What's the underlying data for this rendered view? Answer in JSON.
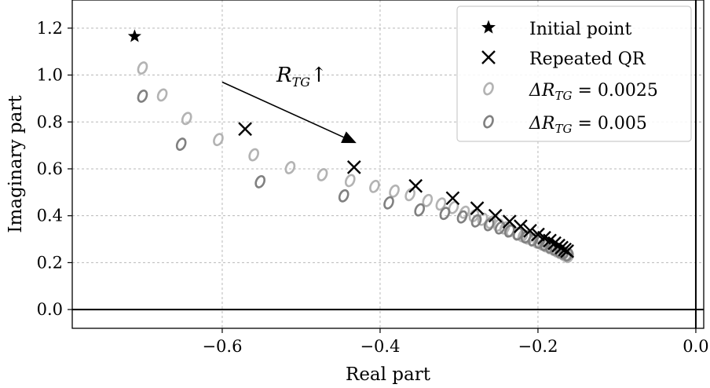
{
  "chart_data": {
    "type": "scatter",
    "title": "",
    "xlabel": "Real part",
    "ylabel": "Imaginary part",
    "xlim": [
      -0.79,
      0.01
    ],
    "ylim": [
      -0.08,
      1.32
    ],
    "xticks": [
      -0.6,
      -0.4,
      -0.2,
      0.0
    ],
    "xtick_labels": [
      "−0.6",
      "−0.4",
      "−0.2",
      "0.0"
    ],
    "yticks": [
      0.0,
      0.2,
      0.4,
      0.6,
      0.8,
      1.0,
      1.2
    ],
    "ytick_labels": [
      "0.0",
      "0.2",
      "0.4",
      "0.6",
      "0.8",
      "1.0",
      "1.2"
    ],
    "grid": true,
    "grid_style": "dashed",
    "reference_lines": {
      "horizontal_at_y": 0.0,
      "vertical_at_x": 0.0
    },
    "legend_position": "top-right",
    "annotation": {
      "text": "R",
      "subscript": "TG",
      "suffix": "↑",
      "arrow_from": [
        -0.6,
        0.97
      ],
      "arrow_to": [
        -0.43,
        0.71
      ]
    },
    "series": [
      {
        "name": "Initial point",
        "marker": "star",
        "color": "#000000",
        "points": [
          [
            -0.711,
            1.165
          ]
        ]
      },
      {
        "name": "Repeated QR",
        "marker": "x",
        "color": "#000000",
        "points": [
          [
            -0.571,
            0.77
          ],
          [
            -0.433,
            0.607
          ],
          [
            -0.355,
            0.527
          ],
          [
            -0.308,
            0.475
          ],
          [
            -0.277,
            0.432
          ],
          [
            -0.254,
            0.4
          ],
          [
            -0.236,
            0.375
          ],
          [
            -0.222,
            0.355
          ],
          [
            -0.21,
            0.336
          ],
          [
            -0.2,
            0.32
          ],
          [
            -0.192,
            0.306
          ],
          [
            -0.185,
            0.294
          ],
          [
            -0.179,
            0.283
          ],
          [
            -0.174,
            0.273
          ],
          [
            -0.17,
            0.264
          ],
          [
            -0.166,
            0.256
          ],
          [
            -0.163,
            0.249
          ]
        ]
      },
      {
        "name": "ΔR_TG = 0.0025",
        "marker": "o-italic",
        "color": "#b3b3b3",
        "points": [
          [
            -0.701,
            1.03
          ],
          [
            -0.676,
            0.915
          ],
          [
            -0.645,
            0.815
          ],
          [
            -0.605,
            0.725
          ],
          [
            -0.56,
            0.66
          ],
          [
            -0.514,
            0.605
          ],
          [
            -0.473,
            0.575
          ],
          [
            -0.438,
            0.55
          ],
          [
            -0.407,
            0.525
          ],
          [
            -0.382,
            0.505
          ],
          [
            -0.362,
            0.49
          ],
          [
            -0.34,
            0.465
          ],
          [
            -0.323,
            0.45
          ],
          [
            -0.307,
            0.435
          ],
          [
            -0.293,
            0.415
          ],
          [
            -0.281,
            0.4
          ],
          [
            -0.27,
            0.385
          ],
          [
            -0.26,
            0.372
          ],
          [
            -0.25,
            0.36
          ],
          [
            -0.242,
            0.348
          ],
          [
            -0.234,
            0.336
          ],
          [
            -0.226,
            0.325
          ],
          [
            -0.219,
            0.315
          ],
          [
            -0.212,
            0.305
          ],
          [
            -0.206,
            0.296
          ],
          [
            -0.2,
            0.288
          ],
          [
            -0.194,
            0.28
          ],
          [
            -0.189,
            0.272
          ],
          [
            -0.184,
            0.264
          ],
          [
            -0.179,
            0.257
          ],
          [
            -0.175,
            0.25
          ],
          [
            -0.171,
            0.243
          ],
          [
            -0.167,
            0.237
          ],
          [
            -0.164,
            0.231
          ],
          [
            -0.161,
            0.226
          ]
        ]
      },
      {
        "name": "ΔR_TG = 0.005",
        "marker": "o-italic",
        "color": "#808080",
        "points": [
          [
            -0.701,
            0.91
          ],
          [
            -0.652,
            0.705
          ],
          [
            -0.552,
            0.545
          ],
          [
            -0.446,
            0.485
          ],
          [
            -0.389,
            0.455
          ],
          [
            -0.35,
            0.425
          ],
          [
            -0.318,
            0.41
          ],
          [
            -0.296,
            0.395
          ],
          [
            -0.278,
            0.378
          ],
          [
            -0.262,
            0.362
          ],
          [
            -0.248,
            0.348
          ],
          [
            -0.236,
            0.335
          ],
          [
            -0.225,
            0.322
          ],
          [
            -0.215,
            0.31
          ],
          [
            -0.206,
            0.298
          ],
          [
            -0.198,
            0.287
          ],
          [
            -0.191,
            0.277
          ],
          [
            -0.184,
            0.267
          ],
          [
            -0.178,
            0.258
          ],
          [
            -0.172,
            0.249
          ],
          [
            -0.167,
            0.241
          ],
          [
            -0.162,
            0.233
          ]
        ]
      }
    ]
  },
  "legend": {
    "items": [
      {
        "label": "Initial point"
      },
      {
        "label": "Repeated QR"
      },
      {
        "label_prefix": "ΔR",
        "label_sub": "TG",
        "label_suffix": " = 0.0025"
      },
      {
        "label_prefix": "ΔR",
        "label_sub": "TG",
        "label_suffix": " = 0.005"
      }
    ]
  }
}
